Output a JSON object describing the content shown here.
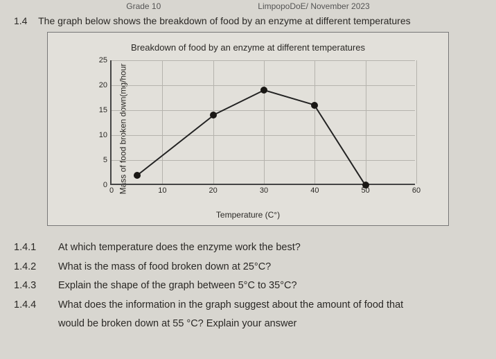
{
  "header": {
    "grade": "Grade 10",
    "exam": "LimpopoDoE/ November 2023"
  },
  "question": {
    "number": "1.4",
    "text": "The graph below shows the breakdown of food by an enzyme at different temperatures"
  },
  "chart": {
    "type": "line",
    "title": "Breakdown of food by an enzyme at different temperatures",
    "ylabel": "Mass of food broken down(mg/hour",
    "xlabel": "Temperature (C°)",
    "background_color": "#e2e0da",
    "line_color": "#222222",
    "point_color": "#1a1815",
    "grid_color": "#b5b3ad",
    "axis_color": "#444444",
    "xlim": [
      0,
      60
    ],
    "ylim": [
      0,
      25
    ],
    "x_ticks": [
      0,
      10,
      20,
      30,
      40,
      50,
      60
    ],
    "y_ticks": [
      0,
      5,
      10,
      15,
      20,
      25
    ],
    "points": [
      {
        "x": 5,
        "y": 2
      },
      {
        "x": 20,
        "y": 14
      },
      {
        "x": 30,
        "y": 19
      },
      {
        "x": 40,
        "y": 16
      },
      {
        "x": 50,
        "y": 0
      }
    ],
    "point_radius": 5,
    "line_width": 2
  },
  "subquestions": [
    {
      "num": "1.4.1",
      "text": "At which temperature does the enzyme work the best?"
    },
    {
      "num": "1.4.2",
      "text": "What is the mass of food broken down at 25°C?"
    },
    {
      "num": "1.4.3",
      "text": "Explain the shape of the graph between 5°C to 35°C?"
    },
    {
      "num": "1.4.4",
      "text": "What does the information in the graph suggest about the amount of food that"
    },
    {
      "num": "",
      "text": "would be broken down at 55 °C? Explain your answer"
    }
  ]
}
